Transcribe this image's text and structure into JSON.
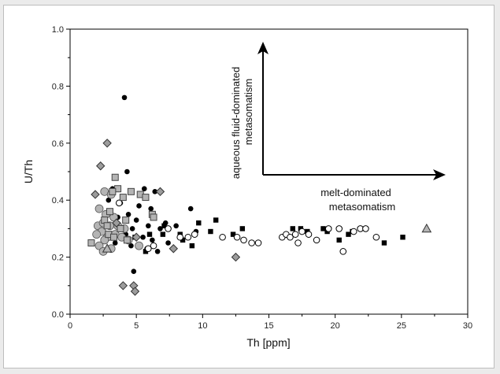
{
  "chart_data": {
    "type": "scatter",
    "xlabel": "Th [ppm]",
    "ylabel": "U/Th",
    "xlim": [
      0,
      30
    ],
    "ylim": [
      0.0,
      1.0
    ],
    "x_ticks": [
      "0",
      "5",
      "10",
      "15",
      "20",
      "25",
      "30"
    ],
    "y_ticks": [
      "0.0",
      "0.2",
      "0.4",
      "0.6",
      "0.8",
      "1.0"
    ],
    "grid": false,
    "annotations": [
      {
        "lines": [
          "aqueous fluid-dominated",
          "metasomatism"
        ],
        "direction": "up"
      },
      {
        "lines": [
          "melt-dominated",
          "metasomatism"
        ],
        "direction": "right"
      }
    ],
    "series": [
      {
        "marker": "filled-circle",
        "color": "#000000",
        "points": [
          [
            4.1,
            0.76
          ],
          [
            4.3,
            0.5
          ],
          [
            3.2,
            0.44
          ],
          [
            5.6,
            0.44
          ],
          [
            6.4,
            0.43
          ],
          [
            2.9,
            0.4
          ],
          [
            3.8,
            0.39
          ],
          [
            5.2,
            0.38
          ],
          [
            6.1,
            0.37
          ],
          [
            9.1,
            0.37
          ],
          [
            4.4,
            0.35
          ],
          [
            3.6,
            0.34
          ],
          [
            5.0,
            0.33
          ],
          [
            7.2,
            0.32
          ],
          [
            5.9,
            0.31
          ],
          [
            8.0,
            0.31
          ],
          [
            4.7,
            0.3
          ],
          [
            6.8,
            0.3
          ],
          [
            9.5,
            0.29
          ],
          [
            3.1,
            0.28
          ],
          [
            4.2,
            0.28
          ],
          [
            5.5,
            0.27
          ],
          [
            6.2,
            0.26
          ],
          [
            7.4,
            0.25
          ],
          [
            3.4,
            0.25
          ],
          [
            4.6,
            0.24
          ],
          [
            5.8,
            0.23
          ],
          [
            6.6,
            0.22
          ],
          [
            4.8,
            0.15
          ]
        ]
      },
      {
        "marker": "filled-square",
        "color": "#000000",
        "points": [
          [
            11.0,
            0.33
          ],
          [
            9.7,
            0.32
          ],
          [
            13.0,
            0.3
          ],
          [
            10.6,
            0.29
          ],
          [
            7.0,
            0.28
          ],
          [
            8.3,
            0.28
          ],
          [
            12.3,
            0.28
          ],
          [
            16.8,
            0.3
          ],
          [
            17.4,
            0.3
          ],
          [
            17.9,
            0.29
          ],
          [
            19.1,
            0.3
          ],
          [
            19.4,
            0.29
          ],
          [
            21.0,
            0.28
          ],
          [
            21.3,
            0.29
          ],
          [
            25.1,
            0.27
          ],
          [
            23.7,
            0.25
          ],
          [
            20.3,
            0.26
          ],
          [
            4.9,
            0.27
          ],
          [
            6.0,
            0.28
          ],
          [
            7.1,
            0.31
          ],
          [
            8.5,
            0.26
          ],
          [
            9.2,
            0.24
          ],
          [
            5.7,
            0.22
          ]
        ]
      },
      {
        "marker": "open-circle",
        "color": "#000000",
        "points": [
          [
            11.5,
            0.27
          ],
          [
            12.6,
            0.27
          ],
          [
            13.1,
            0.26
          ],
          [
            13.7,
            0.25
          ],
          [
            14.2,
            0.25
          ],
          [
            16.0,
            0.27
          ],
          [
            16.3,
            0.28
          ],
          [
            16.6,
            0.27
          ],
          [
            17.0,
            0.28
          ],
          [
            17.2,
            0.25
          ],
          [
            17.5,
            0.29
          ],
          [
            18.0,
            0.28
          ],
          [
            18.6,
            0.26
          ],
          [
            19.5,
            0.3
          ],
          [
            20.3,
            0.3
          ],
          [
            20.6,
            0.22
          ],
          [
            21.4,
            0.29
          ],
          [
            21.9,
            0.3
          ],
          [
            22.3,
            0.3
          ],
          [
            23.1,
            0.27
          ],
          [
            8.3,
            0.27
          ],
          [
            8.9,
            0.27
          ],
          [
            9.4,
            0.28
          ],
          [
            7.4,
            0.3
          ],
          [
            5.9,
            0.23
          ],
          [
            6.3,
            0.24
          ],
          [
            3.7,
            0.39
          ]
        ]
      },
      {
        "marker": "gray-circle",
        "color": "#b4b4b4",
        "points": [
          [
            2.6,
            0.43
          ],
          [
            3.1,
            0.42
          ],
          [
            2.2,
            0.37
          ],
          [
            2.7,
            0.35
          ],
          [
            3.3,
            0.34
          ],
          [
            2.1,
            0.31
          ],
          [
            2.5,
            0.32
          ],
          [
            3.0,
            0.31
          ],
          [
            3.6,
            0.31
          ],
          [
            4.1,
            0.3
          ],
          [
            2.4,
            0.29
          ],
          [
            2.0,
            0.28
          ],
          [
            3.4,
            0.28
          ],
          [
            2.8,
            0.27
          ],
          [
            3.9,
            0.27
          ],
          [
            2.6,
            0.26
          ],
          [
            4.4,
            0.26
          ],
          [
            2.2,
            0.24
          ],
          [
            5.2,
            0.24
          ],
          [
            2.5,
            0.22
          ],
          [
            3.1,
            0.23
          ]
        ]
      },
      {
        "marker": "gray-square",
        "color": "#b4b4b4",
        "points": [
          [
            3.4,
            0.48
          ],
          [
            3.6,
            0.44
          ],
          [
            3.2,
            0.43
          ],
          [
            4.6,
            0.43
          ],
          [
            5.3,
            0.42
          ],
          [
            4.0,
            0.41
          ],
          [
            5.7,
            0.41
          ],
          [
            6.2,
            0.35
          ],
          [
            3.0,
            0.36
          ],
          [
            2.6,
            0.33
          ],
          [
            6.3,
            0.34
          ],
          [
            4.2,
            0.33
          ],
          [
            2.8,
            0.31
          ],
          [
            3.8,
            0.3
          ],
          [
            2.9,
            0.28
          ],
          [
            1.6,
            0.25
          ],
          [
            3.3,
            0.27
          ],
          [
            4.3,
            0.26
          ]
        ]
      },
      {
        "marker": "gray-diamond",
        "color": "#9c9c9c",
        "points": [
          [
            2.8,
            0.6
          ],
          [
            2.3,
            0.52
          ],
          [
            1.9,
            0.42
          ],
          [
            3.5,
            0.32
          ],
          [
            5.0,
            0.27
          ],
          [
            6.8,
            0.43
          ],
          [
            7.8,
            0.23
          ],
          [
            12.5,
            0.2
          ],
          [
            4.0,
            0.1
          ],
          [
            4.8,
            0.1
          ],
          [
            4.9,
            0.08
          ]
        ]
      },
      {
        "marker": "gray-triangle",
        "color": "#b4b4b4",
        "points": [
          [
            26.9,
            0.3
          ],
          [
            2.8,
            0.23
          ]
        ]
      }
    ]
  }
}
